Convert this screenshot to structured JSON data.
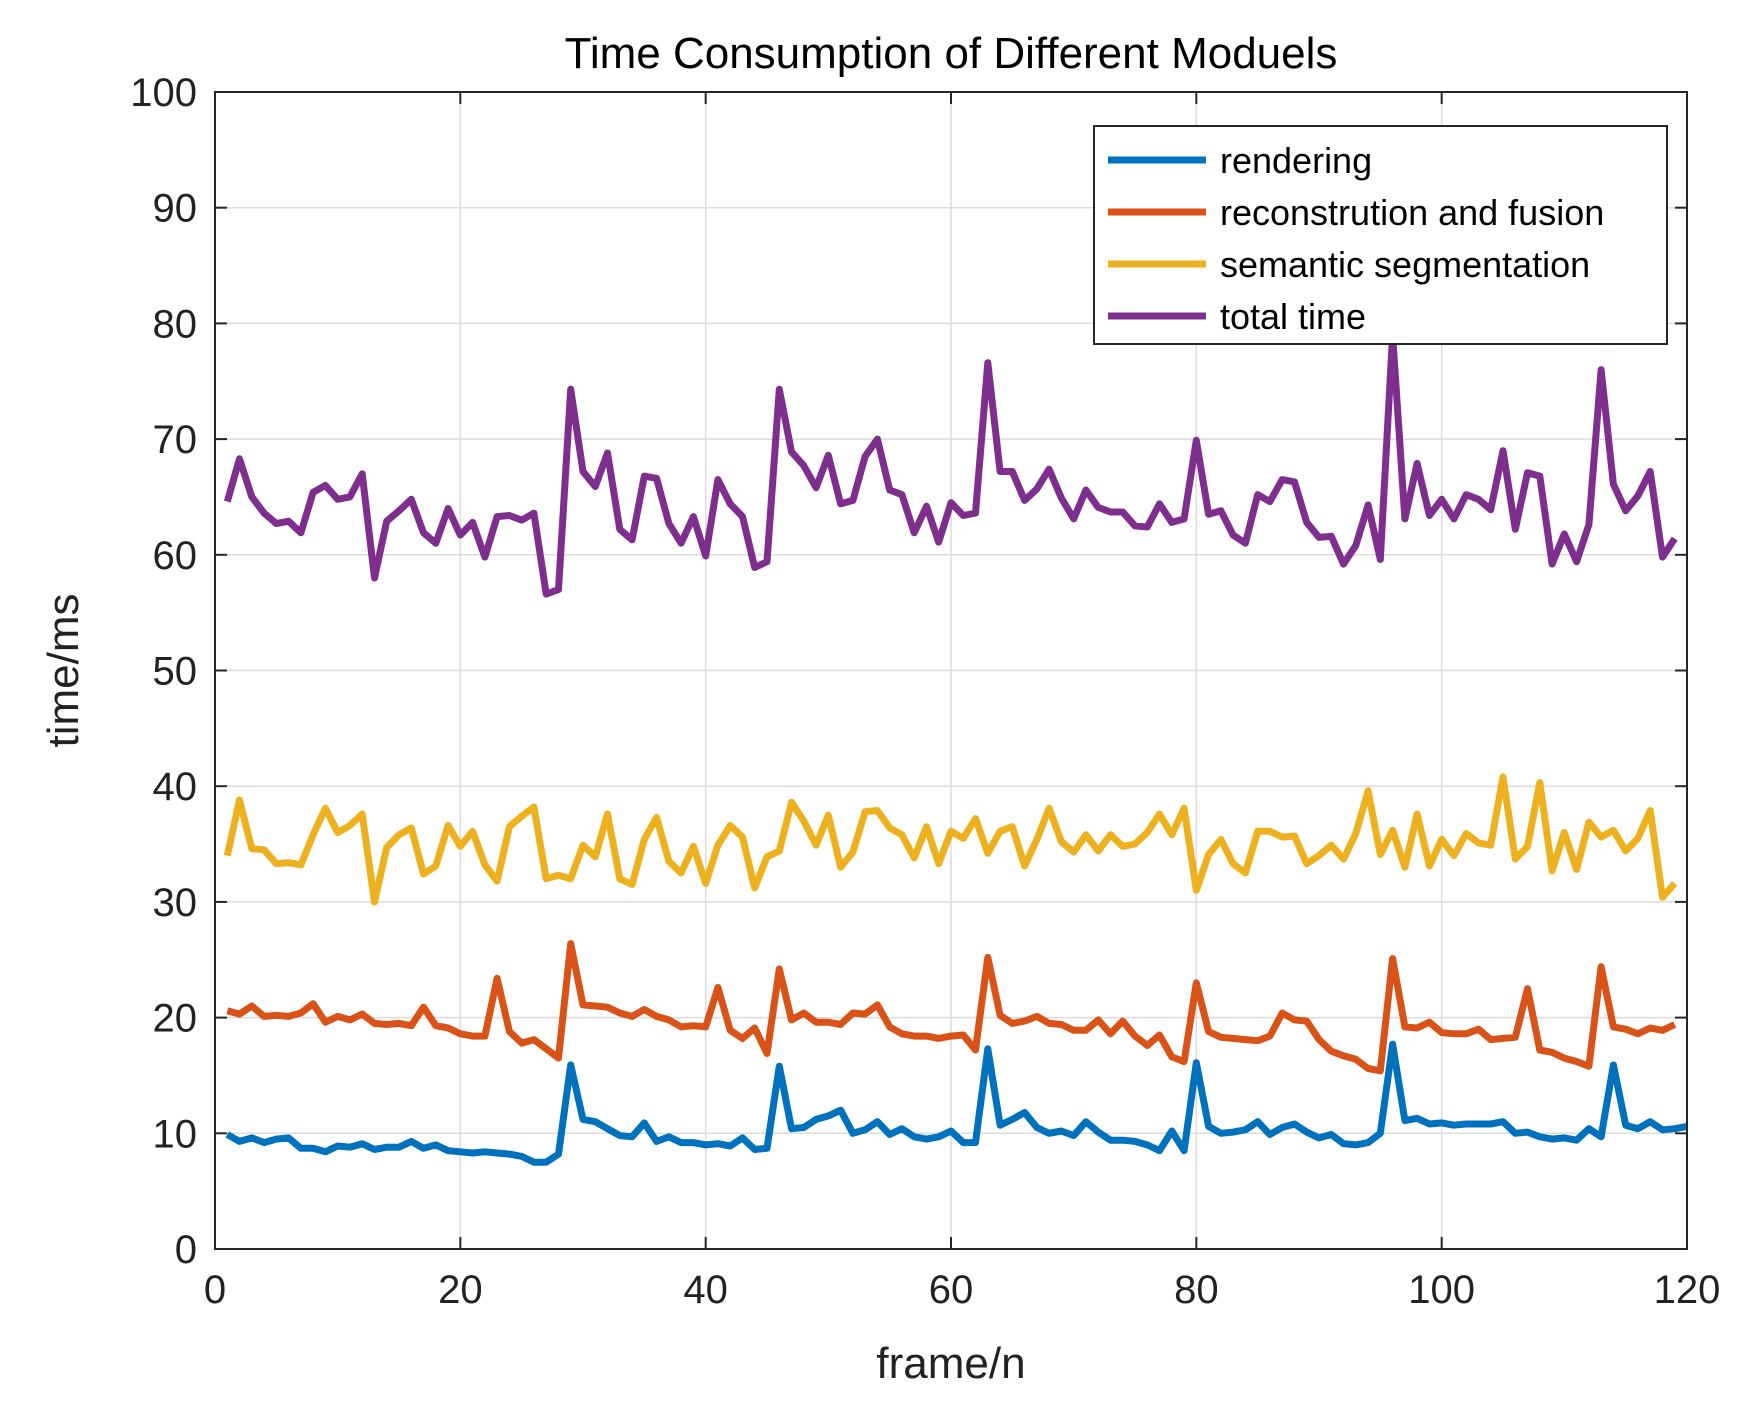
{
  "chart_data": {
    "type": "line",
    "title": "Time Consumption of Different Moduels",
    "xlabel": "frame/n",
    "ylabel": "time/ms",
    "xlim": [
      0,
      120
    ],
    "ylim": [
      0,
      100
    ],
    "xticks": [
      0,
      20,
      40,
      60,
      80,
      100,
      120
    ],
    "yticks": [
      0,
      10,
      20,
      30,
      40,
      50,
      60,
      70,
      80,
      90,
      100
    ],
    "grid": true,
    "legend_position": "top-right",
    "series": [
      {
        "name": "rendering",
        "color": "#0072BD",
        "values": [
          9.9,
          9.3,
          9.6,
          9.2,
          9.5,
          9.6,
          8.7,
          8.7,
          8.4,
          8.9,
          8.8,
          9.1,
          8.6,
          8.8,
          8.8,
          9.3,
          8.7,
          9.0,
          8.5,
          8.4,
          8.3,
          8.4,
          8.3,
          8.2,
          8.0,
          7.5,
          7.5,
          8.2,
          15.9,
          11.2,
          11.0,
          10.4,
          9.8,
          9.7,
          10.9,
          9.3,
          9.7,
          9.2,
          9.2,
          9.0,
          9.1,
          8.9,
          9.6,
          8.6,
          8.7,
          15.8,
          10.4,
          10.5,
          11.2,
          11.5,
          12.0,
          10.0,
          10.3,
          11.0,
          9.9,
          10.4,
          9.7,
          9.5,
          9.7,
          10.2,
          9.2,
          9.2,
          17.3,
          10.7,
          11.2,
          11.8,
          10.5,
          10.0,
          10.2,
          9.8,
          11.0,
          10.1,
          9.4,
          9.4,
          9.3,
          9.0,
          8.5,
          10.2,
          8.5,
          16.1,
          10.6,
          10.0,
          10.1,
          10.3,
          11.0,
          9.9,
          10.5,
          10.8,
          10.1,
          9.6,
          9.9,
          9.1,
          9.0,
          9.2,
          10.0,
          17.7,
          11.1,
          11.3,
          10.8,
          10.9,
          10.7,
          10.8,
          10.8,
          10.8,
          11.0,
          10.0,
          10.1,
          9.7,
          9.5,
          9.6,
          9.4,
          10.4,
          9.7,
          15.9,
          10.7,
          10.4,
          11.0,
          10.3,
          10.4,
          10.6
        ]
      },
      {
        "name": "reconstrution and fusion",
        "color": "#D95319",
        "values": [
          20.6,
          20.3,
          21.0,
          20.1,
          20.2,
          20.1,
          20.4,
          21.2,
          19.6,
          20.1,
          19.8,
          20.3,
          19.5,
          19.4,
          19.5,
          19.3,
          20.9,
          19.3,
          19.1,
          18.6,
          18.4,
          18.4,
          23.4,
          18.8,
          17.8,
          18.1,
          17.3,
          16.5,
          26.4,
          21.1,
          21.0,
          20.9,
          20.4,
          20.1,
          20.7,
          20.1,
          19.8,
          19.2,
          19.3,
          19.2,
          22.6,
          18.9,
          18.2,
          19.1,
          16.9,
          24.2,
          19.8,
          20.4,
          19.6,
          19.6,
          19.4,
          20.4,
          20.3,
          21.1,
          19.2,
          18.6,
          18.4,
          18.4,
          18.2,
          18.4,
          18.5,
          17.2,
          25.2,
          20.2,
          19.5,
          19.7,
          20.1,
          19.5,
          19.4,
          18.9,
          18.9,
          19.8,
          18.6,
          19.7,
          18.4,
          17.6,
          18.5,
          16.6,
          16.2,
          23.0,
          18.8,
          18.3,
          18.2,
          18.1,
          18.0,
          18.4,
          20.4,
          19.8,
          19.7,
          18.1,
          17.1,
          16.7,
          16.4,
          15.6,
          15.4,
          25.1,
          19.2,
          19.1,
          19.6,
          18.7,
          18.6,
          18.6,
          19.0,
          18.1,
          18.2,
          18.3,
          22.5,
          17.2,
          17.0,
          16.5,
          16.2,
          15.8,
          24.4,
          19.2,
          19.0,
          18.6,
          19.1,
          18.9,
          19.4
        ]
      },
      {
        "name": "semantic segmentation",
        "color": "#EDB120",
        "values": [
          34.0,
          38.8,
          34.6,
          34.5,
          33.3,
          33.4,
          33.2,
          35.8,
          38.1,
          36.0,
          36.6,
          37.6,
          30.0,
          34.7,
          35.8,
          36.4,
          32.4,
          33.1,
          36.6,
          34.8,
          36.1,
          33.2,
          31.8,
          36.5,
          37.4,
          38.2,
          32.0,
          32.3,
          32.0,
          34.9,
          33.9,
          37.6,
          32.0,
          31.5,
          35.4,
          37.3,
          33.5,
          32.5,
          34.8,
          31.6,
          34.9,
          36.6,
          35.6,
          31.2,
          33.9,
          34.4,
          38.6,
          37.0,
          34.9,
          37.5,
          33.0,
          34.3,
          37.8,
          37.9,
          36.4,
          35.8,
          33.8,
          36.5,
          33.3,
          36.1,
          35.5,
          37.2,
          34.2,
          36.1,
          36.5,
          33.1,
          35.4,
          38.1,
          35.2,
          34.3,
          35.8,
          34.4,
          35.8,
          34.8,
          35.0,
          36.0,
          37.6,
          35.8,
          38.1,
          31.0,
          34.1,
          35.4,
          33.3,
          32.5,
          36.1,
          36.1,
          35.6,
          35.7,
          33.3,
          34.0,
          34.9,
          33.7,
          35.9,
          39.6,
          34.1,
          36.2,
          33.0,
          37.6,
          33.1,
          35.4,
          34.0,
          35.9,
          35.1,
          34.9,
          40.8,
          33.7,
          34.8,
          40.3,
          32.7,
          36.0,
          32.8,
          36.9,
          35.6,
          36.2,
          34.4,
          35.5,
          37.9,
          30.4,
          31.6
        ]
      },
      {
        "name": "total time",
        "color": "#7E2F8E",
        "values": [
          64.6,
          68.3,
          65.0,
          63.6,
          62.7,
          62.9,
          61.9,
          65.4,
          66.0,
          64.8,
          65.0,
          67.0,
          58.0,
          62.9,
          63.8,
          64.8,
          61.9,
          61.0,
          64.0,
          61.7,
          62.8,
          59.8,
          63.3,
          63.4,
          63.0,
          63.6,
          56.6,
          57.0,
          74.3,
          67.2,
          65.9,
          68.8,
          62.2,
          61.3,
          66.8,
          66.6,
          62.7,
          61.0,
          63.3,
          59.9,
          66.5,
          64.4,
          63.3,
          58.9,
          59.4,
          74.3,
          68.9,
          67.7,
          65.8,
          68.6,
          64.4,
          64.7,
          68.5,
          70.0,
          65.6,
          65.2,
          61.9,
          64.2,
          61.1,
          64.5,
          63.4,
          63.6,
          76.6,
          67.2,
          67.2,
          64.7,
          65.7,
          67.4,
          64.9,
          63.1,
          65.6,
          64.1,
          63.7,
          63.7,
          62.5,
          62.4,
          64.4,
          62.8,
          63.1,
          69.9,
          63.5,
          63.8,
          61.7,
          61.0,
          65.2,
          64.6,
          66.5,
          66.3,
          62.8,
          61.5,
          61.6,
          59.2,
          60.8,
          64.3,
          59.6,
          79.0,
          63.1,
          67.9,
          63.4,
          64.8,
          63.1,
          65.2,
          64.8,
          63.9,
          69.0,
          62.2,
          67.1,
          66.8,
          59.2,
          61.8,
          59.4,
          62.6,
          76.0,
          66.1,
          63.8,
          65.1,
          67.2,
          59.8,
          61.4
        ]
      }
    ]
  }
}
